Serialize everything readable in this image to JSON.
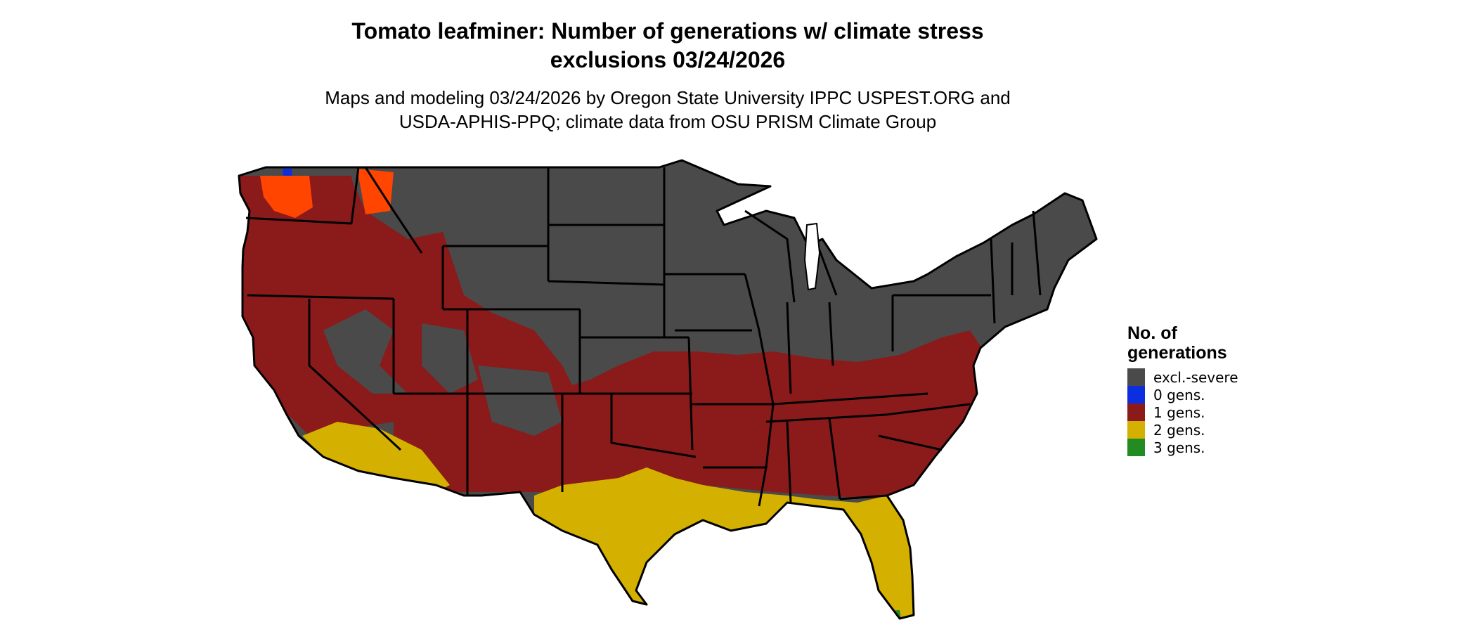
{
  "title_line1": "Tomato leafminer: Number of generations w/ climate stress",
  "title_line2": "exclusions 03/24/2026",
  "subtitle_line1": "Maps and modeling 03/24/2026 by Oregon State University IPPC USPEST.ORG and",
  "subtitle_line2": "USDA-APHIS-PPQ; climate data from OSU PRISM Climate Group",
  "legend": {
    "title_line1": "No. of",
    "title_line2": "generations",
    "items": [
      {
        "label": "excl.-severe",
        "color": "#4a4a4a"
      },
      {
        "label": "0 gens.",
        "color": "#0a2ee0"
      },
      {
        "label": "1 gens.",
        "color": "#8b1a1a"
      },
      {
        "label": "2 gens.",
        "color": "#d4b000"
      },
      {
        "label": "3 gens.",
        "color": "#228b22"
      }
    ]
  },
  "colors": {
    "excl_severe": "#4a4a4a",
    "gen0": "#0a2ee0",
    "gen1": "#8b1a1a",
    "gen2": "#d4b000",
    "gen3": "#228b22",
    "hot_orange": "#ff4500",
    "border": "#000000"
  }
}
